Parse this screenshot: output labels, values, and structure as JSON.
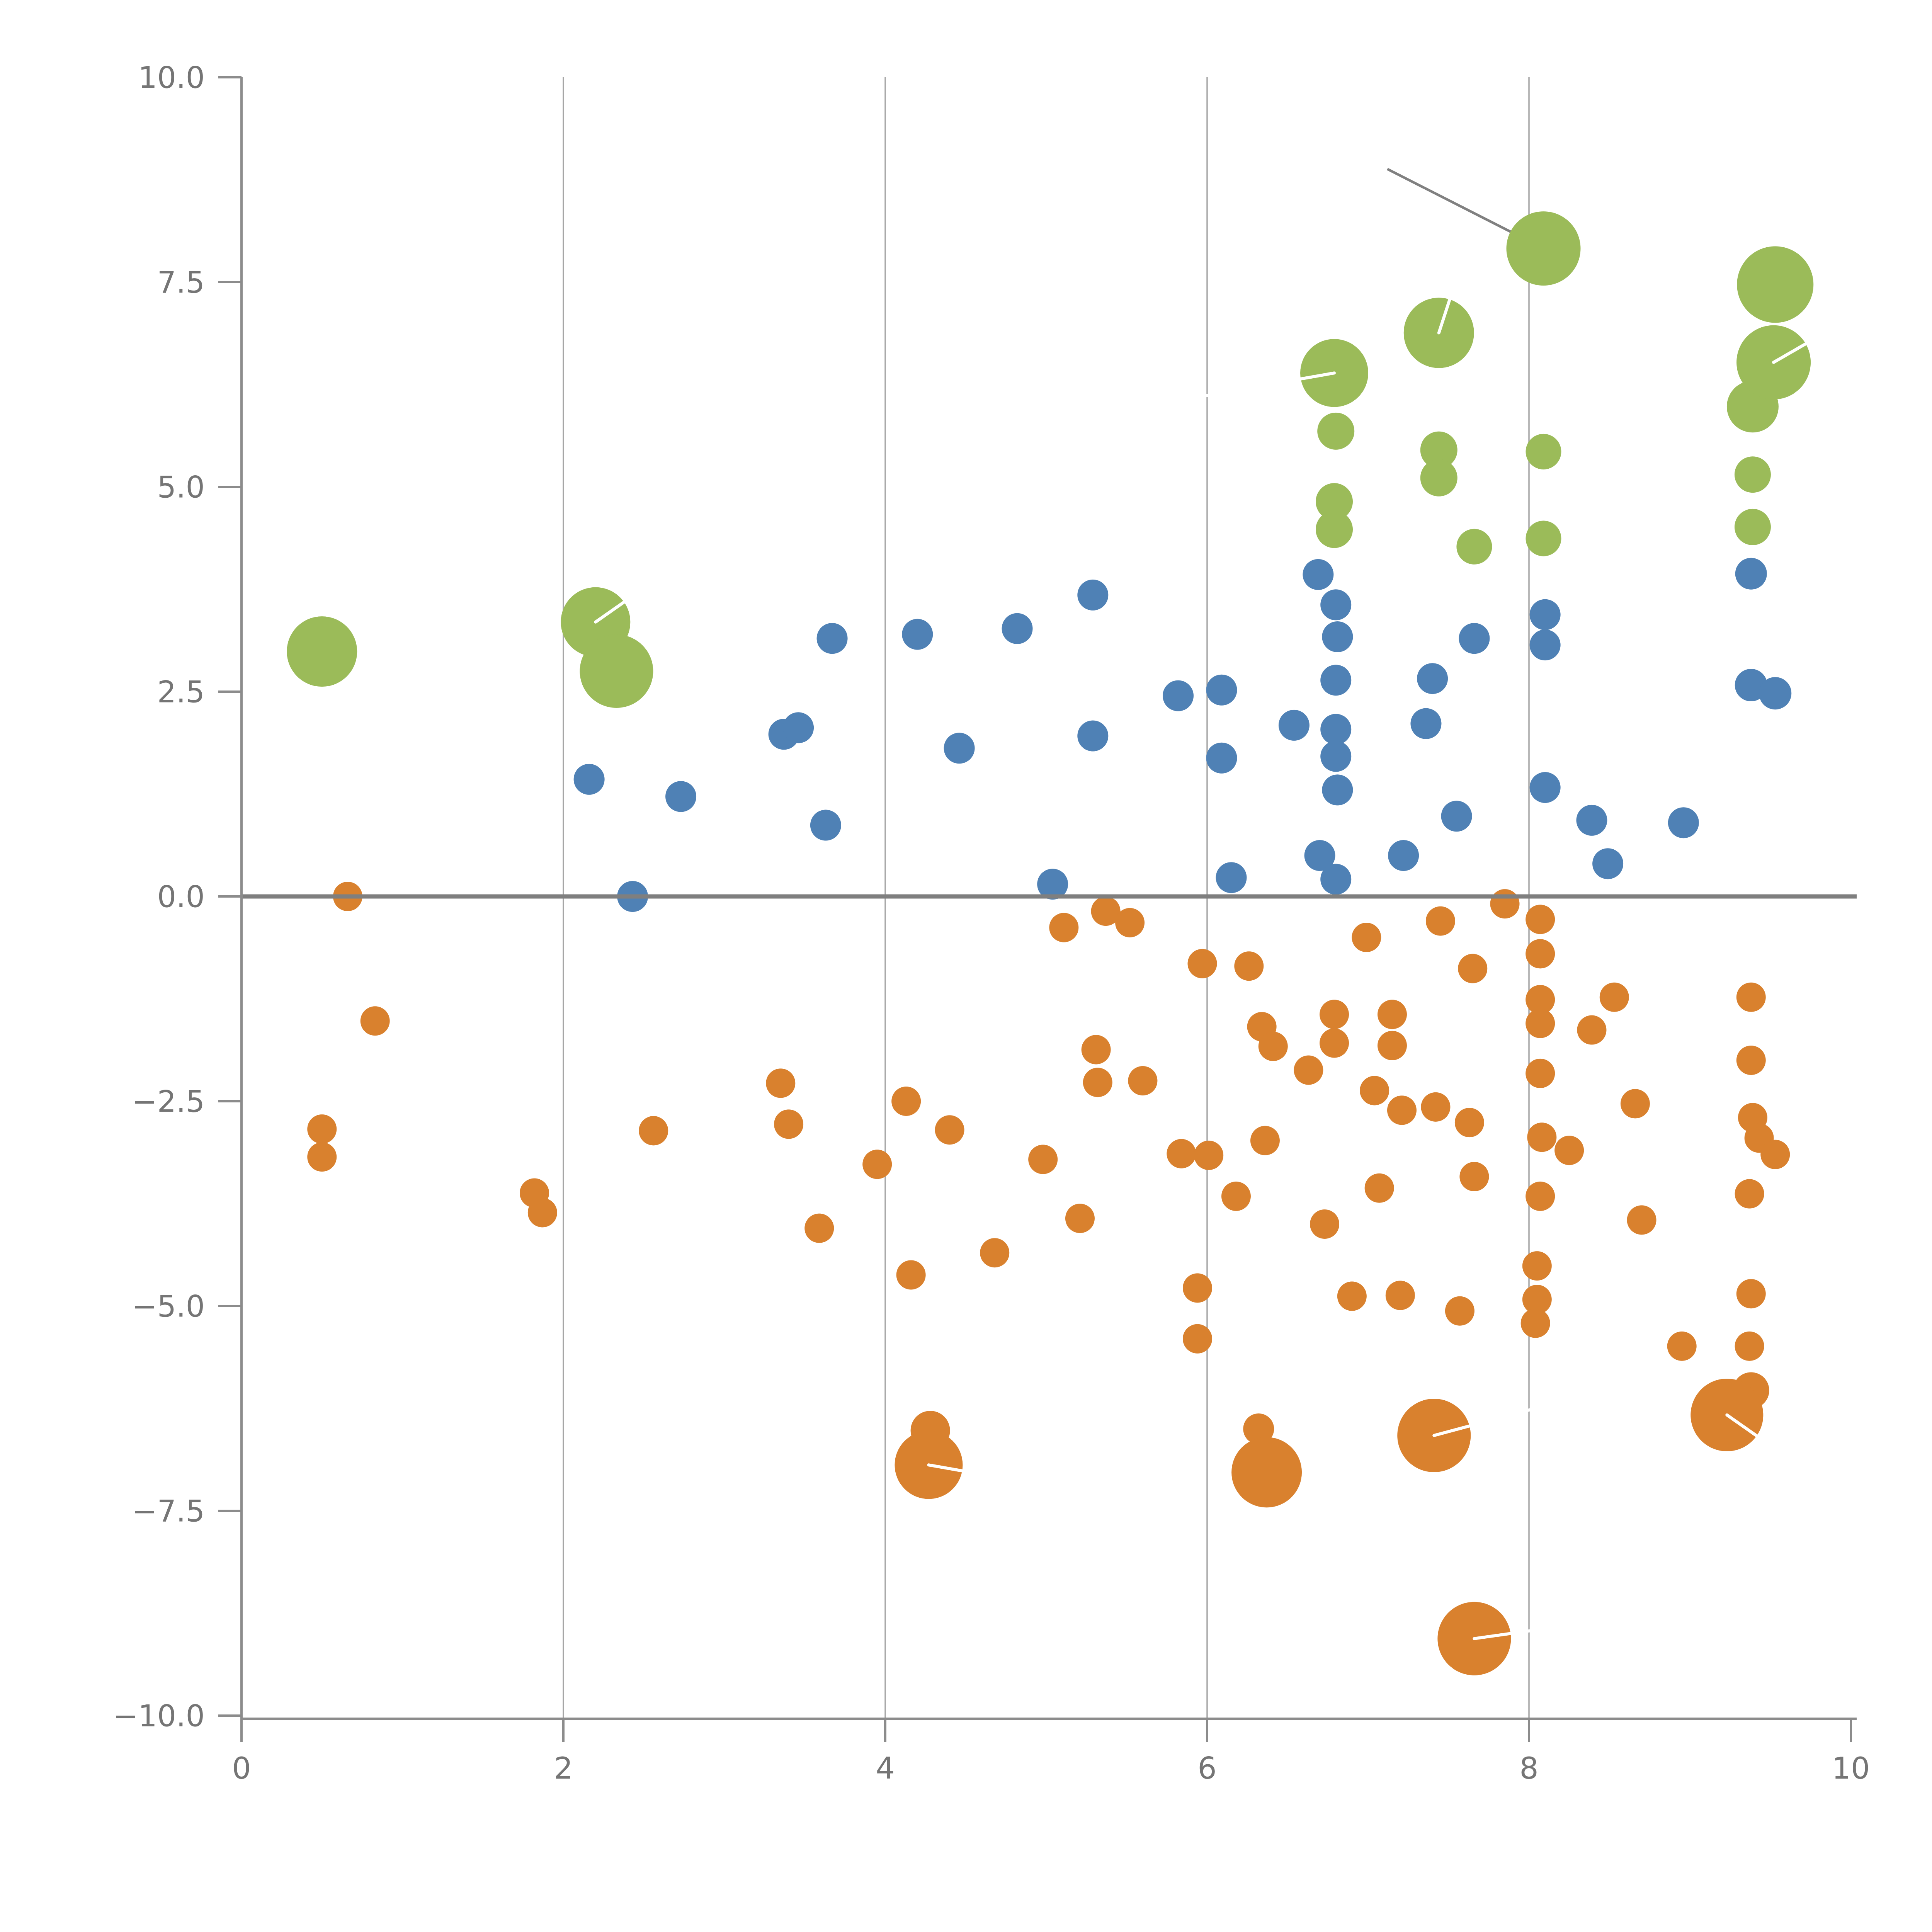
{
  "chart_data": {
    "type": "scatter",
    "title": "",
    "xlabel": "",
    "ylabel": "",
    "xlim": [
      0,
      10
    ],
    "ylim": [
      -10,
      10
    ],
    "grid": {
      "vertical_at": [
        2,
        4,
        6,
        8
      ],
      "horizontal": false
    },
    "zero_line_y": 0,
    "x_ticks": [
      0,
      2,
      4,
      6,
      8,
      10
    ],
    "x_tick_labels": [
      "0",
      "2",
      "4",
      "6",
      "8",
      "10"
    ],
    "y_ticks": [
      10,
      7.5,
      5,
      2.5,
      0,
      -2.5,
      -5,
      -7.5,
      -10
    ],
    "y_tick_labels": [
      "10.0",
      "7.5",
      "5.0",
      "2.5",
      "0.0",
      "−2.5",
      "−5.0",
      "−7.5",
      "−10.0"
    ],
    "legend": null,
    "annotation_line": {
      "x1": 7.12,
      "y1": 8.88,
      "x2": 8.04,
      "y2": 7.96
    },
    "series": [
      {
        "name": "green",
        "color": "#9bbb59",
        "points": [
          {
            "x": 0.5,
            "y": 2.99,
            "r": 18.2
          },
          {
            "x": 2.2,
            "y": 3.35,
            "r": 18.0,
            "tick": {
              "angle": 35,
              "len": 40
            }
          },
          {
            "x": 2.33,
            "y": 2.75,
            "r": 19.0
          },
          {
            "x": 6.79,
            "y": 6.39,
            "r": 17.6,
            "tick": {
              "angle": 190,
              "len": 72
            }
          },
          {
            "x": 7.44,
            "y": 6.88,
            "r": 18.2,
            "tick": {
              "angle": 72,
              "len": 34
            }
          },
          {
            "x": 8.09,
            "y": 7.91,
            "r": 19.2
          },
          {
            "x": 9.53,
            "y": 7.47,
            "r": 19.8
          },
          {
            "x": 9.39,
            "y": 5.98,
            "r": 13.4
          },
          {
            "x": 9.52,
            "y": 6.52,
            "r": 19.2,
            "tick": {
              "angle": 30,
              "len": 26
            }
          },
          {
            "x": 6.8,
            "y": 5.68,
            "r": 9.6
          },
          {
            "x": 7.44,
            "y": 5.45,
            "r": 9.6
          },
          {
            "x": 7.44,
            "y": 5.11,
            "r": 9.6
          },
          {
            "x": 8.09,
            "y": 5.43,
            "r": 9.2
          },
          {
            "x": 6.79,
            "y": 4.82,
            "r": 9.6
          },
          {
            "x": 6.79,
            "y": 4.48,
            "r": 9.6
          },
          {
            "x": 9.39,
            "y": 5.15,
            "r": 9.4
          },
          {
            "x": 9.39,
            "y": 4.51,
            "r": 9.4
          },
          {
            "x": 7.66,
            "y": 4.27,
            "r": 9.2
          },
          {
            "x": 8.09,
            "y": 4.37,
            "r": 9.2
          }
        ]
      },
      {
        "name": "blue",
        "color": "#4f81b5",
        "points": [
          {
            "x": 2.16,
            "y": 1.43,
            "r": 8.0
          },
          {
            "x": 2.43,
            "y": 0.0,
            "r": 8.0
          },
          {
            "x": 2.73,
            "y": 1.22,
            "r": 8.0
          },
          {
            "x": 3.37,
            "y": 1.98,
            "r": 8.0
          },
          {
            "x": 3.46,
            "y": 2.06,
            "r": 8.0
          },
          {
            "x": 3.63,
            "y": 0.87,
            "r": 8.0
          },
          {
            "x": 3.67,
            "y": 3.15,
            "r": 8.0
          },
          {
            "x": 4.2,
            "y": 3.2,
            "r": 8.0
          },
          {
            "x": 4.46,
            "y": 1.81,
            "r": 8.0
          },
          {
            "x": 4.82,
            "y": 3.27,
            "r": 8.0
          },
          {
            "x": 5.29,
            "y": 3.68,
            "r": 8.0
          },
          {
            "x": 5.29,
            "y": 1.96,
            "r": 8.0
          },
          {
            "x": 5.04,
            "y": 0.15,
            "r": 8.0
          },
          {
            "x": 5.82,
            "y": 2.45,
            "r": 8.0
          },
          {
            "x": 6.09,
            "y": 2.52,
            "r": 8.0
          },
          {
            "x": 6.09,
            "y": 1.69,
            "r": 8.0
          },
          {
            "x": 6.15,
            "y": 0.23,
            "r": 8.0
          },
          {
            "x": 6.54,
            "y": 2.09,
            "r": 8.0
          },
          {
            "x": 6.7,
            "y": 0.5,
            "r": 8.0
          },
          {
            "x": 6.8,
            "y": 0.21,
            "r": 8.0
          },
          {
            "x": 6.69,
            "y": 3.93,
            "r": 8.0
          },
          {
            "x": 6.8,
            "y": 3.56,
            "r": 8.0
          },
          {
            "x": 6.81,
            "y": 3.17,
            "r": 8.0
          },
          {
            "x": 6.8,
            "y": 2.64,
            "r": 8.0
          },
          {
            "x": 6.8,
            "y": 2.04,
            "r": 8.0
          },
          {
            "x": 6.8,
            "y": 1.71,
            "r": 8.0
          },
          {
            "x": 6.81,
            "y": 1.3,
            "r": 8.0
          },
          {
            "x": 7.22,
            "y": 0.5,
            "r": 8.0
          },
          {
            "x": 7.55,
            "y": 0.98,
            "r": 8.0
          },
          {
            "x": 7.4,
            "y": 2.66,
            "r": 8.0
          },
          {
            "x": 7.36,
            "y": 2.11,
            "r": 8.0
          },
          {
            "x": 7.66,
            "y": 3.15,
            "r": 8.0
          },
          {
            "x": 8.1,
            "y": 3.44,
            "r": 8.0
          },
          {
            "x": 8.1,
            "y": 3.07,
            "r": 8.0
          },
          {
            "x": 8.1,
            "y": 1.33,
            "r": 8.0
          },
          {
            "x": 8.39,
            "y": 0.93,
            "r": 8.0
          },
          {
            "x": 8.49,
            "y": 0.4,
            "r": 8.0
          },
          {
            "x": 8.96,
            "y": 0.9,
            "r": 8.0
          },
          {
            "x": 9.38,
            "y": 3.94,
            "r": 8.2
          },
          {
            "x": 9.38,
            "y": 2.58,
            "r": 8.4
          },
          {
            "x": 9.53,
            "y": 2.48,
            "r": 8.4
          }
        ]
      },
      {
        "name": "orange",
        "color": "#d9812e",
        "points": [
          {
            "x": 0.66,
            "y": 0.0,
            "r": 7.6
          },
          {
            "x": 0.83,
            "y": -1.52,
            "r": 7.6
          },
          {
            "x": 0.5,
            "y": -2.84,
            "r": 7.6
          },
          {
            "x": 0.5,
            "y": -3.18,
            "r": 7.6
          },
          {
            "x": 1.82,
            "y": -3.62,
            "r": 7.6
          },
          {
            "x": 1.87,
            "y": -3.86,
            "r": 7.6
          },
          {
            "x": 2.56,
            "y": -2.86,
            "r": 7.6
          },
          {
            "x": 3.35,
            "y": -2.28,
            "r": 7.6
          },
          {
            "x": 3.4,
            "y": -2.78,
            "r": 7.6
          },
          {
            "x": 3.59,
            "y": -4.05,
            "r": 7.6
          },
          {
            "x": 3.95,
            "y": -3.27,
            "r": 7.6
          },
          {
            "x": 4.13,
            "y": -2.5,
            "r": 7.6
          },
          {
            "x": 4.4,
            "y": -2.85,
            "r": 7.6
          },
          {
            "x": 4.16,
            "y": -4.62,
            "r": 7.6
          },
          {
            "x": 4.68,
            "y": -4.35,
            "r": 7.6
          },
          {
            "x": 4.98,
            "y": -3.21,
            "r": 7.6
          },
          {
            "x": 5.21,
            "y": -3.93,
            "r": 7.6
          },
          {
            "x": 5.31,
            "y": -1.87,
            "r": 7.6
          },
          {
            "x": 5.32,
            "y": -2.27,
            "r": 7.6
          },
          {
            "x": 5.6,
            "y": -2.25,
            "r": 7.6
          },
          {
            "x": 5.11,
            "y": -0.38,
            "r": 7.6
          },
          {
            "x": 5.37,
            "y": -0.18,
            "r": 7.6
          },
          {
            "x": 5.52,
            "y": -0.32,
            "r": 7.6
          },
          {
            "x": 5.97,
            "y": -0.82,
            "r": 7.6
          },
          {
            "x": 6.26,
            "y": -0.85,
            "r": 7.6
          },
          {
            "x": 6.34,
            "y": -1.59,
            "r": 7.6
          },
          {
            "x": 6.41,
            "y": -1.83,
            "r": 7.6
          },
          {
            "x": 6.63,
            "y": -2.12,
            "r": 7.6
          },
          {
            "x": 6.79,
            "y": -1.44,
            "r": 7.6
          },
          {
            "x": 6.79,
            "y": -1.79,
            "r": 7.6
          },
          {
            "x": 7.15,
            "y": -1.44,
            "r": 7.6
          },
          {
            "x": 7.15,
            "y": -1.82,
            "r": 7.6
          },
          {
            "x": 7.04,
            "y": -2.37,
            "r": 7.6
          },
          {
            "x": 7.21,
            "y": -2.61,
            "r": 7.6
          },
          {
            "x": 7.42,
            "y": -2.57,
            "r": 7.6
          },
          {
            "x": 7.63,
            "y": -2.76,
            "r": 7.6
          },
          {
            "x": 5.84,
            "y": -3.14,
            "r": 7.6
          },
          {
            "x": 6.01,
            "y": -3.16,
            "r": 7.6
          },
          {
            "x": 6.36,
            "y": -2.98,
            "r": 7.6
          },
          {
            "x": 6.18,
            "y": -3.66,
            "r": 7.6
          },
          {
            "x": 6.73,
            "y": -4.0,
            "r": 7.6
          },
          {
            "x": 7.07,
            "y": -3.56,
            "r": 7.6
          },
          {
            "x": 7.66,
            "y": -3.42,
            "r": 7.6
          },
          {
            "x": 6.99,
            "y": -0.5,
            "r": 7.6
          },
          {
            "x": 7.45,
            "y": -0.3,
            "r": 7.6
          },
          {
            "x": 7.85,
            "y": -0.09,
            "r": 7.6
          },
          {
            "x": 7.65,
            "y": -0.88,
            "r": 7.6
          },
          {
            "x": 8.07,
            "y": -0.28,
            "r": 7.6
          },
          {
            "x": 8.07,
            "y": -0.7,
            "r": 7.6
          },
          {
            "x": 8.07,
            "y": -1.26,
            "r": 7.6
          },
          {
            "x": 8.07,
            "y": -1.55,
            "r": 7.6
          },
          {
            "x": 8.07,
            "y": -2.16,
            "r": 7.6
          },
          {
            "x": 8.08,
            "y": -2.94,
            "r": 7.6
          },
          {
            "x": 8.25,
            "y": -3.1,
            "r": 7.6
          },
          {
            "x": 8.07,
            "y": -3.66,
            "r": 7.6
          },
          {
            "x": 8.05,
            "y": -4.51,
            "r": 7.6
          },
          {
            "x": 8.05,
            "y": -4.92,
            "r": 7.6
          },
          {
            "x": 8.04,
            "y": -5.21,
            "r": 7.6
          },
          {
            "x": 8.53,
            "y": -1.23,
            "r": 7.6
          },
          {
            "x": 8.39,
            "y": -1.63,
            "r": 7.6
          },
          {
            "x": 8.66,
            "y": -2.53,
            "r": 7.6
          },
          {
            "x": 8.7,
            "y": -3.95,
            "r": 7.6
          },
          {
            "x": 9.38,
            "y": -1.23,
            "r": 7.6
          },
          {
            "x": 9.38,
            "y": -2.0,
            "r": 7.6
          },
          {
            "x": 9.39,
            "y": -2.7,
            "r": 7.6
          },
          {
            "x": 9.43,
            "y": -2.95,
            "r": 7.6
          },
          {
            "x": 9.53,
            "y": -3.15,
            "r": 7.6
          },
          {
            "x": 9.37,
            "y": -3.63,
            "r": 7.6
          },
          {
            "x": 9.38,
            "y": -4.85,
            "r": 7.6
          },
          {
            "x": 8.95,
            "y": -5.49,
            "r": 7.6
          },
          {
            "x": 9.37,
            "y": -5.49,
            "r": 7.6
          },
          {
            "x": 5.94,
            "y": -4.78,
            "r": 7.6
          },
          {
            "x": 5.94,
            "y": -5.4,
            "r": 7.6
          },
          {
            "x": 6.9,
            "y": -4.88,
            "r": 7.6
          },
          {
            "x": 7.2,
            "y": -4.87,
            "r": 7.6
          },
          {
            "x": 7.57,
            "y": -5.06,
            "r": 7.6
          },
          {
            "x": 9.38,
            "y": -6.03,
            "r": 9.4
          },
          {
            "x": 9.23,
            "y": -6.33,
            "r": 18.8,
            "tick": {
              "angle": -35,
              "len": 30
            }
          },
          {
            "x": 4.28,
            "y": -6.52,
            "r": 10.2
          },
          {
            "x": 4.27,
            "y": -6.94,
            "r": 17.6,
            "tick": {
              "angle": -10,
              "len": 55
            }
          },
          {
            "x": 6.32,
            "y": -6.5,
            "r": 8.0
          },
          {
            "x": 6.37,
            "y": -7.03,
            "r": 18.2
          },
          {
            "x": 7.41,
            "y": -6.58,
            "r": 19.0,
            "tick": {
              "angle": 15,
              "len": 60
            }
          },
          {
            "x": 7.66,
            "y": -9.06,
            "r": 19.0,
            "tick": {
              "angle": 8,
              "len": 55
            }
          }
        ]
      }
    ],
    "style": {
      "background": "#ffffff",
      "gridline_color": "#a6a6a6",
      "zero_line_color": "#7f7f7f",
      "axis_color": "#8c8c8c",
      "tick_label_color": "#757575",
      "annotation_line_color": "#808080",
      "bubble_tick_color": "#ffffff"
    }
  }
}
